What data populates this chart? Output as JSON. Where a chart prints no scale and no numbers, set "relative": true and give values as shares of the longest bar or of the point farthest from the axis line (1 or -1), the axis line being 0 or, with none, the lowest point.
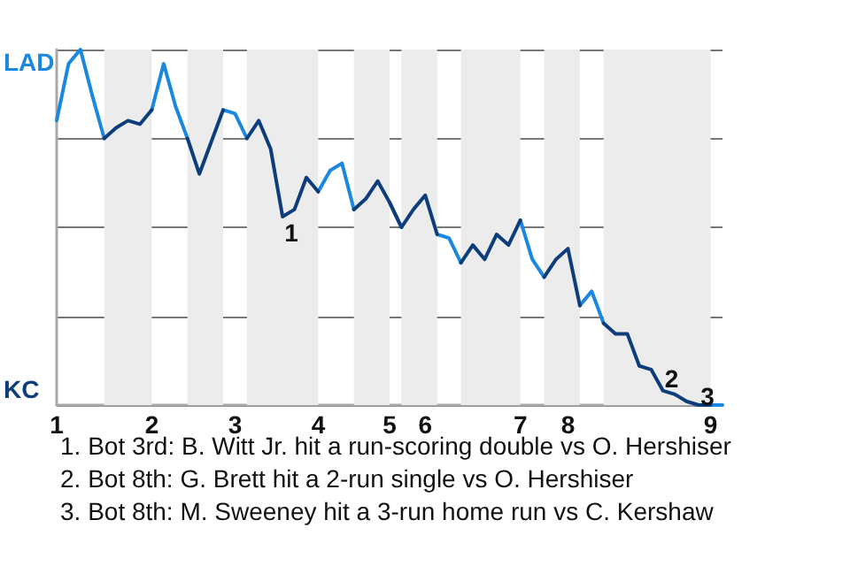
{
  "chart_data": {
    "type": "line",
    "relative": true,
    "categories": [
      "1",
      null,
      null,
      null,
      null,
      null,
      null,
      null,
      "2",
      null,
      null,
      null,
      null,
      null,
      null,
      "3",
      null,
      null,
      null,
      null,
      null,
      null,
      "4",
      null,
      null,
      null,
      null,
      null,
      "5",
      null,
      null,
      "6",
      null,
      null,
      null,
      null,
      null,
      null,
      null,
      "7",
      null,
      null,
      null,
      "8",
      null,
      null,
      null,
      null,
      null,
      null,
      null,
      null,
      null,
      null,
      null,
      "9",
      null
    ],
    "series": [
      {
        "color": "#1a88e0",
        "values": [
          0.8,
          0.96,
          1,
          0.87,
          0.75,
          null,
          null,
          null,
          0.83,
          0.96,
          0.84,
          0.75,
          null,
          null,
          0.83,
          0.82,
          0.75,
          null,
          null,
          null,
          null,
          null,
          0.6,
          0.66,
          0.68,
          0.55,
          null,
          null,
          0.57,
          0.5,
          null,
          null,
          0.48,
          0.47,
          0.4,
          null,
          null,
          null,
          null,
          0.52,
          0.41,
          0.36,
          null,
          null,
          0.28,
          0.32,
          0.23,
          null,
          null,
          null,
          null,
          null,
          null,
          null,
          null,
          0,
          0
        ]
      },
      {
        "color": "#0d3d7a",
        "values": [
          null,
          null,
          null,
          null,
          0.75,
          0.78,
          0.8,
          0.79,
          0.83,
          null,
          null,
          0.75,
          0.65,
          0.74,
          0.83,
          null,
          0.75,
          0.8,
          0.72,
          0.53,
          0.55,
          0.64,
          0.6,
          null,
          null,
          0.55,
          0.58,
          0.63,
          0.57,
          0.5,
          0.55,
          0.59,
          0.48,
          null,
          0.4,
          0.45,
          0.41,
          0.48,
          0.45,
          0.52,
          null,
          0.36,
          0.41,
          0.44,
          0.28,
          null,
          0.23,
          0.2,
          0.2,
          0.11,
          0.1,
          0.04,
          0.03,
          0.01,
          0,
          0,
          null
        ]
      }
    ],
    "marker": "none",
    "grid": "y",
    "annotations": [
      "LAD",
      "KC",
      "1",
      "2",
      "3",
      "1. Bot 3rd: B. Witt Jr. hit a run-scoring double vs O. Hershiser",
      "2. Bot 8th: G. Brett hit a 2-run single vs O. Hershiser",
      "3. Bot 8th: M. Sweeney hit a 3-run home run vs C. Kershaw"
    ]
  }
}
